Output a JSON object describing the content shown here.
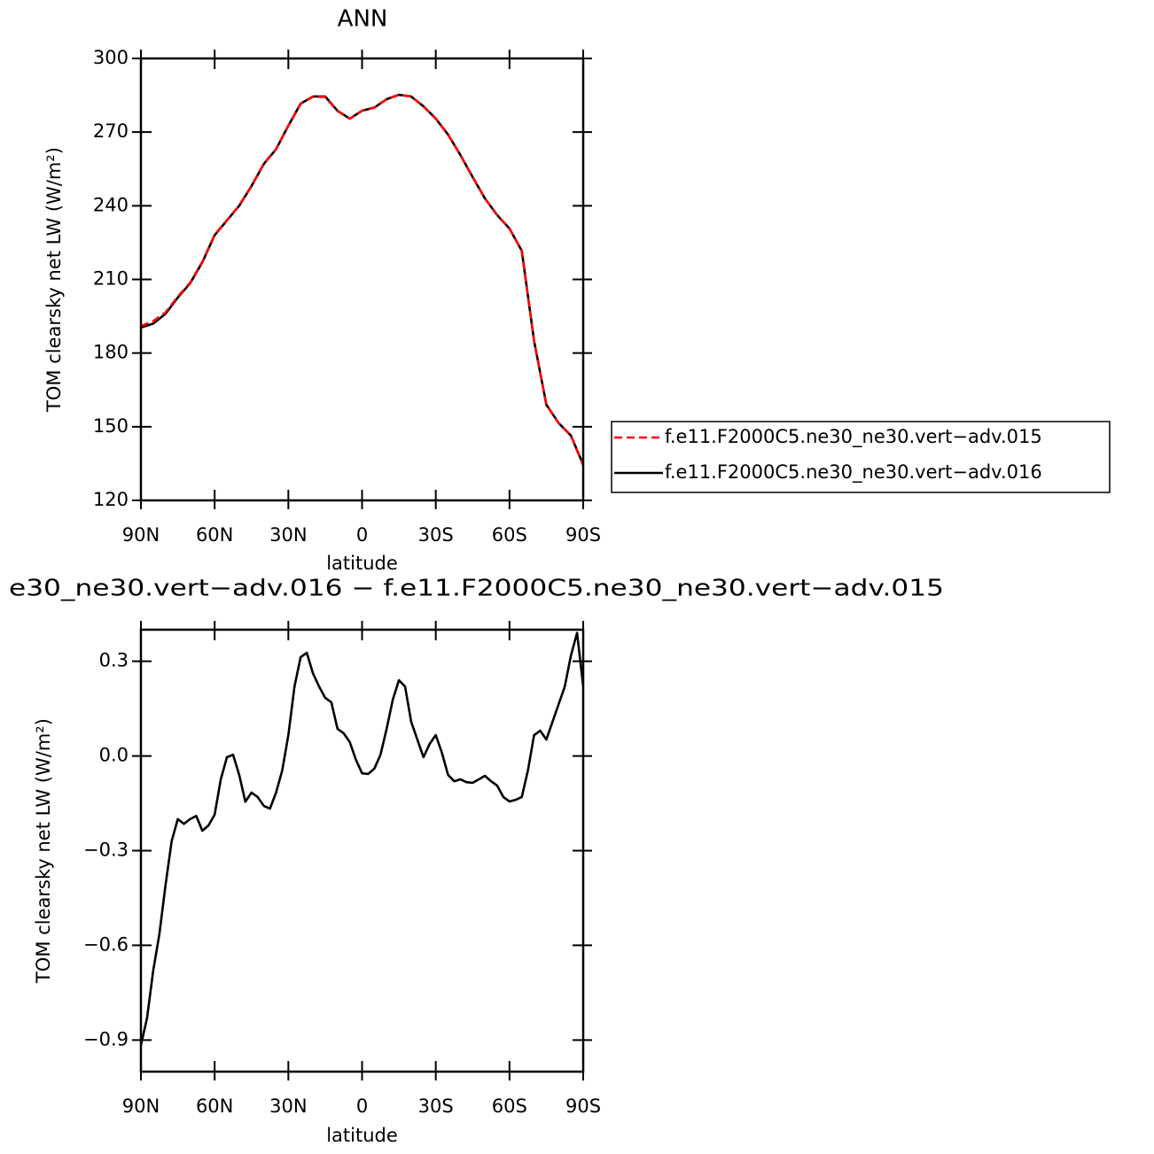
{
  "chart_data": [
    {
      "type": "line",
      "title": "ANN",
      "xlabel": "latitude",
      "ylabel": "TOM clearsky net LW (W/m²)",
      "xlim": [
        90,
        -90
      ],
      "xticks": [
        {
          "value": 90,
          "label": "90N"
        },
        {
          "value": 60,
          "label": "60N"
        },
        {
          "value": 30,
          "label": "30N"
        },
        0,
        {
          "value": -30,
          "label": "30S"
        },
        {
          "value": -60,
          "label": "60S"
        },
        {
          "value": -90,
          "label": "90S"
        }
      ],
      "ylim": [
        120,
        300
      ],
      "yticks": [
        120,
        150,
        180,
        210,
        240,
        270,
        300
      ],
      "legend": "right",
      "x": [
        90,
        85,
        80,
        75,
        70,
        65,
        60,
        55,
        50,
        45,
        40,
        35,
        30,
        25,
        20,
        15,
        10,
        5,
        0,
        -5,
        -10,
        -15,
        -20,
        -25,
        -30,
        -35,
        -40,
        -45,
        -50,
        -55,
        -60,
        -65,
        -70,
        -75,
        -80,
        -85,
        -90
      ],
      "series": [
        {
          "name": "f.e11.F2000C5.ne30_ne30.vert−adv.015",
          "color": "#ff0000",
          "dash": true,
          "values": [
            191,
            193,
            196.5,
            203,
            208.6,
            217.2,
            228.2,
            234.1,
            240.1,
            248.1,
            257.1,
            263.1,
            272.6,
            281.5,
            284.4,
            284.3,
            278.6,
            275.4,
            278.7,
            280,
            283.4,
            285.2,
            284.5,
            280.5,
            275.5,
            269,
            260.7,
            251.7,
            243,
            236.2,
            230.7,
            221.7,
            185,
            159,
            151.5,
            146.4,
            134.3
          ]
        },
        {
          "name": "f.e11.F2000C5.ne30_ne30.vert−adv.016",
          "color": "#000000",
          "dash": false,
          "values": [
            190.4,
            192,
            196,
            202.6,
            208.4,
            217,
            228,
            234,
            240,
            248,
            257,
            263,
            272.6,
            281.6,
            284.5,
            284.5,
            278.7,
            275.5,
            278.7,
            280,
            283.4,
            285.2,
            284.5,
            280.5,
            275.5,
            269,
            260.7,
            251.7,
            243,
            236.2,
            230.7,
            221.7,
            185,
            159,
            151.5,
            146.4,
            134.5
          ]
        }
      ]
    },
    {
      "type": "line",
      "title": "e30_ne30.vert−adv.016 − f.e11.F2000C5.ne30_ne30.vert−adv.015",
      "xlabel": "latitude",
      "ylabel": "TOM clearsky net LW (W/m²)",
      "xlim": [
        90,
        -90
      ],
      "xticks": [
        {
          "value": 90,
          "label": "90N"
        },
        {
          "value": 60,
          "label": "60N"
        },
        {
          "value": 30,
          "label": "30N"
        },
        0,
        {
          "value": -30,
          "label": "30S"
        },
        {
          "value": -60,
          "label": "60S"
        },
        {
          "value": -90,
          "label": "90S"
        }
      ],
      "ylim": [
        -1.0,
        0.4
      ],
      "yticks": [
        {
          "value": -0.9,
          "label": "−0.9"
        },
        {
          "value": -0.6,
          "label": "−0.6"
        },
        {
          "value": -0.3,
          "label": "−0.3"
        },
        {
          "value": 0,
          "label": "0.0"
        },
        0.3
      ],
      "x": [
        90,
        87.5,
        85,
        82.5,
        80,
        77.5,
        75,
        72.5,
        70,
        67.5,
        65,
        62.5,
        60,
        57.5,
        55,
        52.5,
        50,
        47.5,
        45,
        42.5,
        40,
        37.5,
        35,
        32.5,
        30,
        27.5,
        25,
        22.5,
        20,
        17.5,
        15,
        12.5,
        10,
        7.5,
        5,
        2.5,
        0,
        -2.5,
        -5,
        -7.5,
        -10,
        -12.5,
        -15,
        -17.5,
        -20,
        -22.5,
        -25,
        -27.5,
        -30,
        -32.5,
        -35,
        -37.5,
        -40,
        -42.5,
        -45,
        -47.5,
        -50,
        -52.5,
        -55,
        -57.5,
        -60,
        -62.5,
        -65,
        -67.5,
        -70,
        -72.5,
        -75,
        -77.5,
        -80,
        -82.5,
        -85,
        -87.5,
        -90
      ],
      "series": [
        {
          "color": "#000000",
          "dash": false,
          "values": [
            -0.916,
            -0.83,
            -0.68,
            -0.565,
            -0.41,
            -0.27,
            -0.2,
            -0.215,
            -0.2,
            -0.19,
            -0.237,
            -0.22,
            -0.186,
            -0.074,
            -0.004,
            0.004,
            -0.06,
            -0.145,
            -0.116,
            -0.13,
            -0.158,
            -0.167,
            -0.116,
            -0.046,
            0.066,
            0.22,
            0.313,
            0.327,
            0.262,
            0.22,
            0.184,
            0.17,
            0.086,
            0.072,
            0.044,
            -0.012,
            -0.055,
            -0.057,
            -0.04,
            0.004,
            0.086,
            0.178,
            0.24,
            0.22,
            0.108,
            0.052,
            -0.004,
            0.038,
            0.066,
            0.01,
            -0.06,
            -0.08,
            -0.074,
            -0.083,
            -0.085,
            -0.074,
            -0.063,
            -0.08,
            -0.094,
            -0.13,
            -0.144,
            -0.139,
            -0.13,
            -0.046,
            0.066,
            0.08,
            0.052,
            0.108,
            0.164,
            0.22,
            0.318,
            0.39,
            0.22
          ]
        }
      ]
    }
  ]
}
